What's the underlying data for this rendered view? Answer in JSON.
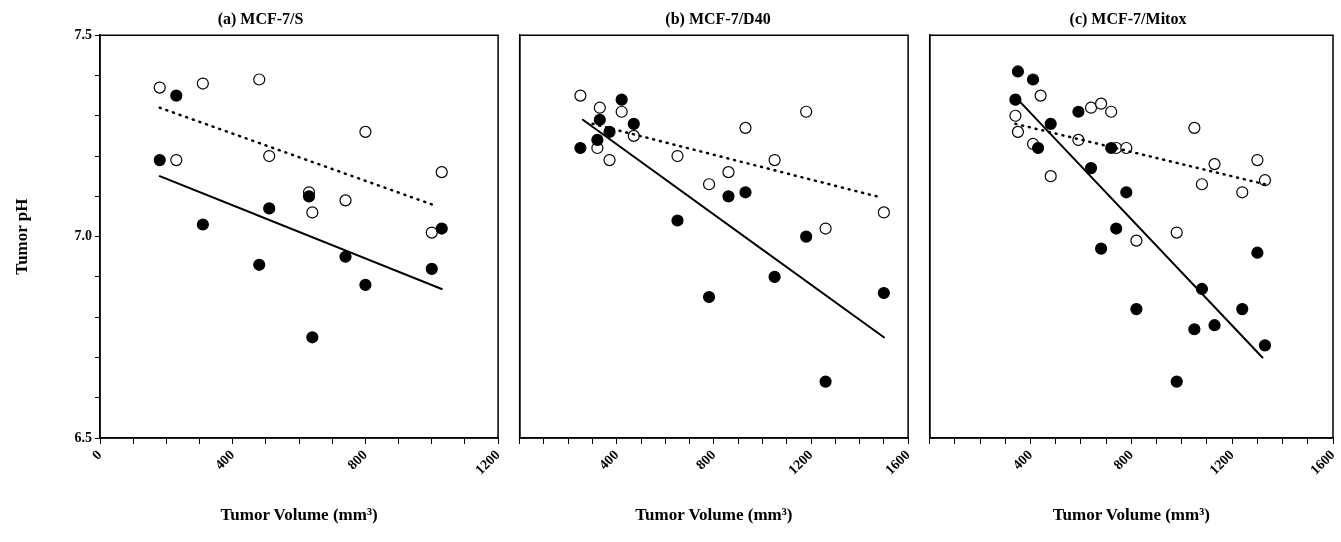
{
  "chart_data": [
    {
      "type": "scatter",
      "title": "(a) MCF-7/S",
      "xlabel": "Tumor Volume (mm³)",
      "ylabel": "Tumor pH",
      "legend": false,
      "grid": false,
      "xlim": [
        0,
        1200
      ],
      "ylim": [
        6.5,
        7.5
      ],
      "xticks": [
        0,
        {
          "value": 100,
          "label": null
        },
        {
          "value": 200,
          "label": null
        },
        {
          "value": 300,
          "label": null
        },
        400,
        {
          "value": 500,
          "label": null
        },
        {
          "value": 600,
          "label": null
        },
        {
          "value": 700,
          "label": null
        },
        800,
        {
          "value": 900,
          "label": null
        },
        {
          "value": 1000,
          "label": null
        },
        {
          "value": 1100,
          "label": null
        },
        1200
      ],
      "yticks": [
        6.5,
        {
          "value": 6.6,
          "label": null
        },
        {
          "value": 6.7,
          "label": null
        },
        {
          "value": 6.8,
          "label": null
        },
        {
          "value": 6.9,
          "label": null
        },
        {
          "value": 7,
          "label": "7.0"
        },
        {
          "value": 7.1,
          "label": null
        },
        {
          "value": 7.2,
          "label": null
        },
        {
          "value": 7.3,
          "label": null
        },
        {
          "value": 7.4,
          "label": null
        },
        7.5
      ],
      "series": [
        {
          "type": "scatter",
          "marker": "circle",
          "color": "#ffffff",
          "x": [
            180,
            310,
            480,
            230,
            510,
            800,
            630,
            640,
            740,
            1030,
            1000
          ],
          "values": [
            7.37,
            7.38,
            7.39,
            7.19,
            7.2,
            7.26,
            7.11,
            7.06,
            7.09,
            7.16,
            7.01
          ]
        },
        {
          "type": "scatter",
          "marker": "circle",
          "color": "#000000",
          "x": [
            230,
            180,
            310,
            510,
            480,
            630,
            640,
            740,
            800,
            1000,
            1030
          ],
          "values": [
            7.35,
            7.19,
            7.03,
            7.07,
            6.93,
            7.1,
            6.75,
            6.95,
            6.88,
            6.92,
            7.02
          ]
        },
        {
          "type": "line",
          "marker": "none",
          "line_style": "solid",
          "color": "#000000",
          "x": [
            180,
            1030
          ],
          "values": [
            7.15,
            6.87
          ]
        },
        {
          "type": "line",
          "marker": "none",
          "line_style": "dotted",
          "color": "#000000",
          "x": [
            180,
            1000
          ],
          "values": [
            7.32,
            7.08
          ]
        }
      ]
    },
    {
      "type": "scatter",
      "title": "(b) MCF-7/D40",
      "xlabel": "Tumor Volume (mm³)",
      "legend": false,
      "grid": false,
      "tick_labels": "x",
      "xlim": [
        0,
        1600
      ],
      "ylim": [
        6.5,
        7.5
      ],
      "xticks": [
        {
          "value": 0,
          "label": null
        },
        {
          "value": 100,
          "label": null
        },
        {
          "value": 200,
          "label": null
        },
        {
          "value": 300,
          "label": null
        },
        400,
        {
          "value": 500,
          "label": null
        },
        {
          "value": 600,
          "label": null
        },
        {
          "value": 700,
          "label": null
        },
        800,
        {
          "value": 900,
          "label": null
        },
        {
          "value": 1000,
          "label": null
        },
        {
          "value": 1100,
          "label": null
        },
        1200,
        {
          "value": 1300,
          "label": null
        },
        {
          "value": 1400,
          "label": null
        },
        {
          "value": 1500,
          "label": null
        },
        1600
      ],
      "series": [
        {
          "type": "scatter",
          "marker": "circle",
          "color": "#ffffff",
          "x": [
            250,
            330,
            420,
            470,
            320,
            370,
            650,
            780,
            860,
            930,
            1050,
            1180,
            1260,
            1500
          ],
          "values": [
            7.35,
            7.32,
            7.31,
            7.25,
            7.22,
            7.19,
            7.2,
            7.13,
            7.16,
            7.27,
            7.19,
            7.31,
            7.02,
            7.06
          ]
        },
        {
          "type": "scatter",
          "marker": "circle",
          "color": "#000000",
          "x": [
            250,
            330,
            420,
            470,
            370,
            320,
            650,
            780,
            860,
            930,
            1050,
            1180,
            1260,
            1500
          ],
          "values": [
            7.22,
            7.29,
            7.34,
            7.28,
            7.26,
            7.24,
            7.04,
            6.85,
            7.1,
            7.11,
            6.9,
            7,
            6.64,
            6.86
          ]
        },
        {
          "type": "line",
          "marker": "none",
          "line_style": "solid",
          "color": "#000000",
          "x": [
            260,
            1500
          ],
          "values": [
            7.29,
            6.75
          ]
        },
        {
          "type": "line",
          "marker": "none",
          "line_style": "dotted",
          "color": "#000000",
          "x": [
            300,
            1470
          ],
          "values": [
            7.28,
            7.1
          ]
        }
      ]
    },
    {
      "type": "scatter",
      "title": "(c) MCF-7/Mitox",
      "xlabel": "Tumor Volume (mm³)",
      "legend": false,
      "grid": false,
      "tick_labels": "x",
      "xlim": [
        0,
        1600
      ],
      "ylim": [
        6.5,
        7.5
      ],
      "xticks": [
        {
          "value": 0,
          "label": null
        },
        {
          "value": 100,
          "label": null
        },
        {
          "value": 200,
          "label": null
        },
        {
          "value": 300,
          "label": null
        },
        400,
        {
          "value": 500,
          "label": null
        },
        {
          "value": 600,
          "label": null
        },
        {
          "value": 700,
          "label": null
        },
        800,
        {
          "value": 900,
          "label": null
        },
        {
          "value": 1000,
          "label": null
        },
        {
          "value": 1100,
          "label": null
        },
        1200,
        {
          "value": 1300,
          "label": null
        },
        {
          "value": 1400,
          "label": null
        },
        {
          "value": 1500,
          "label": null
        },
        1600
      ],
      "series": [
        {
          "type": "scatter",
          "marker": "circle",
          "color": "#ffffff",
          "x": [
            340,
            350,
            440,
            410,
            480,
            590,
            640,
            680,
            720,
            740,
            780,
            820,
            980,
            1050,
            1130,
            1080,
            1300,
            1330,
            1240
          ],
          "values": [
            7.3,
            7.26,
            7.35,
            7.23,
            7.15,
            7.24,
            7.32,
            7.33,
            7.31,
            7.22,
            7.22,
            6.99,
            7.01,
            7.27,
            7.18,
            7.13,
            7.19,
            7.14,
            7.11
          ]
        },
        {
          "type": "scatter",
          "marker": "circle",
          "color": "#000000",
          "x": [
            350,
            410,
            340,
            480,
            430,
            590,
            640,
            720,
            780,
            740,
            680,
            820,
            980,
            1080,
            1050,
            1130,
            1240,
            1300,
            1330
          ],
          "values": [
            7.41,
            7.39,
            7.34,
            7.28,
            7.22,
            7.31,
            7.17,
            7.22,
            7.11,
            7.02,
            6.97,
            6.82,
            6.64,
            6.87,
            6.77,
            6.78,
            6.82,
            6.96,
            6.73
          ]
        },
        {
          "type": "line",
          "marker": "none",
          "line_style": "solid",
          "color": "#000000",
          "x": [
            350,
            1320
          ],
          "values": [
            7.34,
            6.7
          ]
        },
        {
          "type": "line",
          "marker": "none",
          "line_style": "dotted",
          "color": "#000000",
          "x": [
            340,
            1330
          ],
          "values": [
            7.28,
            7.13
          ]
        }
      ]
    }
  ]
}
